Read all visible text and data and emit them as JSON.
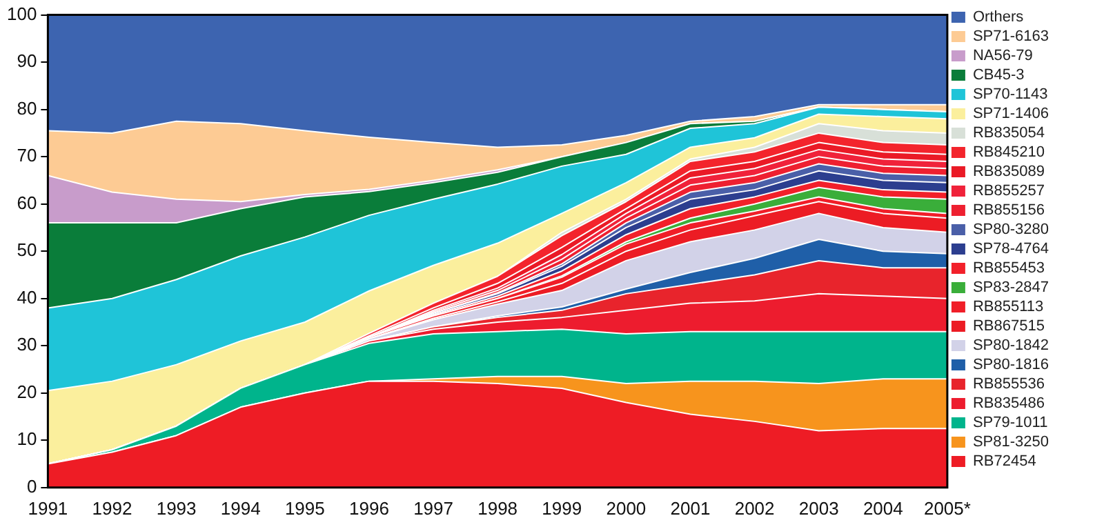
{
  "chart_data": {
    "type": "area",
    "stacked": true,
    "categories": [
      "1991",
      "1992",
      "1993",
      "1994",
      "1995",
      "1996",
      "1997",
      "1998",
      "1999",
      "2000",
      "2001",
      "2002",
      "2003",
      "2004",
      "2005*"
    ],
    "ylim": [
      0,
      100
    ],
    "yticks": [
      0,
      10,
      20,
      30,
      40,
      50,
      60,
      70,
      80,
      90,
      100
    ],
    "grid": false,
    "legend": "right",
    "marker": "none",
    "series": [
      {
        "name": "RB72454",
        "color": "#ee1c25",
        "values": [
          5,
          7.5,
          11,
          17,
          20,
          22.5,
          22.5,
          22,
          21,
          18,
          15.5,
          14,
          12,
          12.5,
          12.5
        ]
      },
      {
        "name": "SP81-3250",
        "color": "#f7941d",
        "values": [
          0,
          0,
          0,
          0,
          0,
          0,
          0.5,
          1.5,
          2.5,
          4,
          7,
          8.5,
          10,
          10.5,
          10.5
        ]
      },
      {
        "name": "SP79-1011",
        "color": "#00b48c",
        "values": [
          0,
          0.5,
          2,
          4,
          6,
          8,
          9.5,
          9.5,
          10,
          10.5,
          10.5,
          10.5,
          11,
          10,
          10
        ]
      },
      {
        "name": "RB835486",
        "color": "#ed1c2e",
        "values": [
          0,
          0,
          0,
          0,
          0,
          0.5,
          1,
          2,
          2.5,
          5,
          6,
          6.5,
          8,
          7.5,
          7
        ]
      },
      {
        "name": "RB855536",
        "color": "#e8242c",
        "values": [
          0,
          0,
          0,
          0,
          0,
          0,
          0.5,
          1,
          1.5,
          3.5,
          4,
          5.5,
          7,
          6,
          6.5
        ]
      },
      {
        "name": "SP80-1816",
        "color": "#1f5fa8",
        "values": [
          0,
          0,
          0,
          0,
          0,
          0,
          0,
          0.3,
          0.7,
          1,
          2.5,
          3.5,
          4.5,
          3.5,
          3
        ]
      },
      {
        "name": "SP80-1842",
        "color": "#d2d2e8",
        "values": [
          0,
          0,
          0,
          0,
          0,
          0.5,
          1.5,
          2.5,
          3.5,
          6,
          6.5,
          6,
          5.5,
          5,
          4.5
        ]
      },
      {
        "name": "RB867515",
        "color": "#ec1c24",
        "values": [
          0,
          0,
          0,
          0,
          0,
          0,
          0.3,
          0.5,
          1.5,
          2,
          2.5,
          3,
          2.5,
          3,
          3
        ]
      },
      {
        "name": "RB855113",
        "color": "#f01e28",
        "values": [
          0,
          0,
          0,
          0,
          0,
          0.3,
          0.5,
          0.7,
          1.3,
          1.5,
          1.5,
          1,
          1,
          1,
          1
        ]
      },
      {
        "name": "SP83-2847",
        "color": "#3aae3a",
        "values": [
          0,
          0,
          0,
          0,
          0,
          0,
          0,
          0,
          0.3,
          0.5,
          1,
          1.5,
          2,
          2.5,
          3
        ]
      },
      {
        "name": "RB855453",
        "color": "#f2202a",
        "values": [
          0,
          0,
          0,
          0,
          0,
          0,
          0.3,
          0.5,
          1,
          1.5,
          2,
          1.5,
          1.5,
          1.5,
          1.5
        ]
      },
      {
        "name": "SP78-4764",
        "color": "#2c3e8f",
        "values": [
          0,
          0,
          0,
          0,
          0,
          0,
          0.3,
          0.5,
          1,
          1.5,
          2,
          1.5,
          2,
          2,
          2
        ]
      },
      {
        "name": "SP80-3280",
        "color": "#4a5fa8",
        "values": [
          0,
          0,
          0,
          0,
          0,
          0,
          0,
          0.2,
          0.5,
          1,
          1.5,
          1.5,
          1.5,
          1.5,
          1.5
        ]
      },
      {
        "name": "RB855156",
        "color": "#ee2030",
        "values": [
          0,
          0,
          0,
          0,
          0,
          0,
          0.3,
          0.5,
          1,
          1,
          1.5,
          1.5,
          1.5,
          1.5,
          1.5
        ]
      },
      {
        "name": "RB855257",
        "color": "#f0223a",
        "values": [
          0,
          0,
          0,
          0,
          0,
          0,
          0.3,
          0.5,
          1,
          1,
          1.5,
          1.5,
          1.5,
          1.5,
          1.5
        ]
      },
      {
        "name": "RB835089",
        "color": "#ea1a26",
        "values": [
          0,
          0,
          0,
          0,
          0,
          0.3,
          0.5,
          1,
          1.5,
          1,
          1.5,
          1.5,
          1.5,
          1.5,
          1.5
        ]
      },
      {
        "name": "RB845210",
        "color": "#f3242c",
        "values": [
          0,
          0,
          0,
          0,
          0,
          0.5,
          1,
          1.5,
          2.5,
          1.5,
          2,
          2,
          2,
          2,
          2
        ]
      },
      {
        "name": "RB835054",
        "color": "#d8e0d8",
        "values": [
          0,
          0,
          0,
          0,
          0,
          0,
          0,
          0,
          0.7,
          0.5,
          0.5,
          1,
          2,
          2.5,
          2.5
        ]
      },
      {
        "name": "SP71-1406",
        "color": "#fbef9d",
        "values": [
          15.5,
          14.5,
          13,
          10,
          9,
          9,
          8,
          7,
          4,
          3.5,
          2.5,
          2,
          2,
          3,
          3
        ]
      },
      {
        "name": "SP70-1143",
        "color": "#1fc4d8",
        "values": [
          17.5,
          17.5,
          18,
          18,
          18,
          16,
          14,
          12.5,
          10,
          6,
          4,
          3,
          1.5,
          1.5,
          1.5
        ]
      },
      {
        "name": "CB45-3",
        "color": "#0a7d3a",
        "values": [
          18,
          16,
          12,
          10,
          8.5,
          5,
          3.5,
          2.5,
          2,
          2.5,
          1,
          0.5,
          0,
          0,
          0
        ]
      },
      {
        "name": "NA56-79",
        "color": "#c89ccb",
        "values": [
          10,
          6.5,
          5,
          1.5,
          0.5,
          0.5,
          0.5,
          0.5,
          0,
          0,
          0,
          0,
          0,
          0,
          0
        ]
      },
      {
        "name": "SP71-6163",
        "color": "#fdcb94",
        "values": [
          9.5,
          12.5,
          16.5,
          16.5,
          13.5,
          11,
          8,
          4.8,
          2.5,
          1.5,
          0.5,
          1,
          0.5,
          1,
          1.5
        ]
      },
      {
        "name": "Orthers",
        "color": "#3d64b0",
        "values": [
          24.5,
          25,
          22.5,
          23,
          24.5,
          25.9,
          27,
          28,
          27.5,
          25.5,
          22.5,
          21.5,
          19,
          19,
          19
        ]
      }
    ]
  }
}
